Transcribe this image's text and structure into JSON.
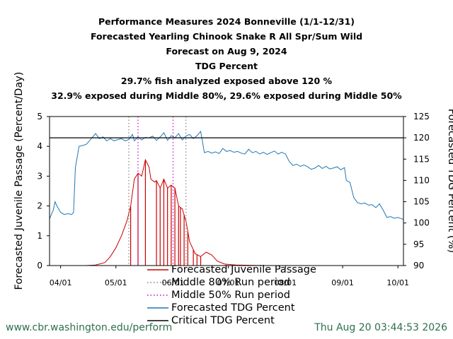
{
  "chart_data": {
    "type": "line",
    "title_lines": [
      "Performance Measures 2024 Bonneville (1/1-12/31)",
      "Forecasted Yearling Chinook Snake R All Spr/Sum Wild",
      "Forecast on Aug 9, 2024",
      "TDG Percent",
      "29.7% fish analyzed exposed above 120 %",
      "32.9% exposed during Middle 80%, 29.6% exposed during Middle 50%"
    ],
    "ylabel_left": "Forecasted Juvenile Passage (Percent/Day)",
    "ylabel_right": "Forecasted TDG Percent (%)",
    "ylim_left": [
      0,
      5
    ],
    "ylim_right": [
      90,
      125
    ],
    "yticks_left": [
      "0",
      "1",
      "2",
      "3",
      "4",
      "5"
    ],
    "yticks_right": [
      "90",
      "95",
      "100",
      "105",
      "110",
      "115",
      "120",
      "125"
    ],
    "xlim_days": [
      "2024-03-26",
      "2024-10-04"
    ],
    "xticks": [
      {
        "label": "04/01",
        "date": "2024-04-01"
      },
      {
        "label": "05/01",
        "date": "2024-05-01"
      },
      {
        "label": "06/01",
        "date": "2024-06-01"
      },
      {
        "label": "07/01",
        "date": "2024-07-01"
      },
      {
        "label": "08/01",
        "date": "2024-08-01"
      },
      {
        "label": "09/01",
        "date": "2024-09-01"
      },
      {
        "label": "10/01",
        "date": "2024-10-01"
      }
    ],
    "critical_tdg": 120,
    "middle80_dates": [
      "2024-05-08",
      "2024-06-08"
    ],
    "middle50_dates": [
      "2024-05-13",
      "2024-06-01"
    ],
    "passage_series": {
      "name": "Forecasted Juvenile Passage",
      "points": [
        [
          "2024-04-15",
          0
        ],
        [
          "2024-04-20",
          0.02
        ],
        [
          "2024-04-25",
          0.1
        ],
        [
          "2024-04-28",
          0.3
        ],
        [
          "2024-05-01",
          0.6
        ],
        [
          "2024-05-04",
          1.0
        ],
        [
          "2024-05-07",
          1.5
        ],
        [
          "2024-05-09",
          2.0
        ],
        [
          "2024-05-11",
          2.9
        ],
        [
          "2024-05-13",
          3.1
        ],
        [
          "2024-05-15",
          3.0
        ],
        [
          "2024-05-17",
          3.55
        ],
        [
          "2024-05-19",
          3.3
        ],
        [
          "2024-05-20",
          2.9
        ],
        [
          "2024-05-22",
          2.8
        ],
        [
          "2024-05-23",
          2.85
        ],
        [
          "2024-05-25",
          2.6
        ],
        [
          "2024-05-27",
          2.9
        ],
        [
          "2024-05-29",
          2.6
        ],
        [
          "2024-05-31",
          2.7
        ],
        [
          "2024-06-02",
          2.6
        ],
        [
          "2024-06-04",
          2.0
        ],
        [
          "2024-06-06",
          1.9
        ],
        [
          "2024-06-08",
          1.5
        ],
        [
          "2024-06-10",
          0.8
        ],
        [
          "2024-06-13",
          0.4
        ],
        [
          "2024-06-16",
          0.3
        ],
        [
          "2024-06-19",
          0.45
        ],
        [
          "2024-06-22",
          0.35
        ],
        [
          "2024-06-25",
          0.15
        ],
        [
          "2024-06-29",
          0.05
        ],
        [
          "2024-07-05",
          0.02
        ],
        [
          "2024-07-20",
          0
        ],
        [
          "2024-08-10",
          0
        ]
      ]
    },
    "exposure_bar_dates": [
      "2024-05-09",
      "2024-05-13",
      "2024-05-17",
      "2024-05-23",
      "2024-05-25",
      "2024-05-27",
      "2024-05-29",
      "2024-05-31",
      "2024-06-02",
      "2024-06-04",
      "2024-06-05",
      "2024-06-07",
      "2024-06-09",
      "2024-06-12",
      "2024-06-14",
      "2024-06-16"
    ],
    "tdg_series": {
      "name": "Forecasted TDG Percent",
      "points": [
        [
          "2024-03-26",
          101
        ],
        [
          "2024-03-28",
          103
        ],
        [
          "2024-03-29",
          105
        ],
        [
          "2024-03-30",
          104
        ],
        [
          "2024-04-01",
          102.5
        ],
        [
          "2024-04-03",
          102
        ],
        [
          "2024-04-05",
          102.2
        ],
        [
          "2024-04-07",
          102
        ],
        [
          "2024-04-08",
          102.5
        ],
        [
          "2024-04-09",
          113
        ],
        [
          "2024-04-11",
          118
        ],
        [
          "2024-04-13",
          118.2
        ],
        [
          "2024-04-15",
          118.5
        ],
        [
          "2024-04-17",
          119.5
        ],
        [
          "2024-04-19",
          120.5
        ],
        [
          "2024-04-20",
          121
        ],
        [
          "2024-04-22",
          119.8
        ],
        [
          "2024-04-24",
          120.2
        ],
        [
          "2024-04-26",
          119.3
        ],
        [
          "2024-04-28",
          119.8
        ],
        [
          "2024-04-30",
          119.3
        ],
        [
          "2024-05-02",
          119.6
        ],
        [
          "2024-05-04",
          119.8
        ],
        [
          "2024-05-06",
          119.3
        ],
        [
          "2024-05-08",
          119.6
        ],
        [
          "2024-05-10",
          120.8
        ],
        [
          "2024-05-11",
          119.3
        ],
        [
          "2024-05-13",
          120.2
        ],
        [
          "2024-05-15",
          119.5
        ],
        [
          "2024-05-17",
          120.1
        ],
        [
          "2024-05-19",
          120.0
        ],
        [
          "2024-05-21",
          120.4
        ],
        [
          "2024-05-23",
          119.4
        ],
        [
          "2024-05-25",
          120.2
        ],
        [
          "2024-05-27",
          121.2
        ],
        [
          "2024-05-29",
          119.4
        ],
        [
          "2024-05-31",
          120.5
        ],
        [
          "2024-06-02",
          120.0
        ],
        [
          "2024-06-04",
          121.0
        ],
        [
          "2024-06-06",
          119.5
        ],
        [
          "2024-06-08",
          120.4
        ],
        [
          "2024-06-10",
          120.8
        ],
        [
          "2024-06-12",
          119.8
        ],
        [
          "2024-06-14",
          120.5
        ],
        [
          "2024-06-16",
          121.5
        ],
        [
          "2024-06-18",
          116.5
        ],
        [
          "2024-06-20",
          116.8
        ],
        [
          "2024-06-22",
          116.4
        ],
        [
          "2024-06-24",
          116.7
        ],
        [
          "2024-06-26",
          116.3
        ],
        [
          "2024-06-28",
          117.5
        ],
        [
          "2024-06-30",
          116.8
        ],
        [
          "2024-07-02",
          117
        ],
        [
          "2024-07-04",
          116.6
        ],
        [
          "2024-07-06",
          116.8
        ],
        [
          "2024-07-08",
          116.4
        ],
        [
          "2024-07-10",
          116.2
        ],
        [
          "2024-07-12",
          117.3
        ],
        [
          "2024-07-14",
          116.5
        ],
        [
          "2024-07-16",
          116.8
        ],
        [
          "2024-07-18",
          116.2
        ],
        [
          "2024-07-20",
          116.6
        ],
        [
          "2024-07-22",
          116.1
        ],
        [
          "2024-07-24",
          116.5
        ],
        [
          "2024-07-26",
          116.9
        ],
        [
          "2024-07-28",
          116.2
        ],
        [
          "2024-07-30",
          116.6
        ],
        [
          "2024-08-01",
          116.2
        ],
        [
          "2024-08-03",
          114.5
        ],
        [
          "2024-08-05",
          113.5
        ],
        [
          "2024-08-07",
          113.8
        ],
        [
          "2024-08-09",
          113.3
        ],
        [
          "2024-08-11",
          113.6
        ],
        [
          "2024-08-13",
          113.2
        ],
        [
          "2024-08-15",
          112.6
        ],
        [
          "2024-08-17",
          112.9
        ],
        [
          "2024-08-19",
          113.5
        ],
        [
          "2024-08-21",
          112.8
        ],
        [
          "2024-08-23",
          113.3
        ],
        [
          "2024-08-25",
          112.7
        ],
        [
          "2024-08-27",
          112.9
        ],
        [
          "2024-08-29",
          113.2
        ],
        [
          "2024-08-31",
          112.5
        ],
        [
          "2024-09-02",
          113
        ],
        [
          "2024-09-03",
          110
        ],
        [
          "2024-09-05",
          109.5
        ],
        [
          "2024-09-07",
          106
        ],
        [
          "2024-09-09",
          104.8
        ],
        [
          "2024-09-11",
          104.5
        ],
        [
          "2024-09-13",
          104.7
        ],
        [
          "2024-09-15",
          104.2
        ],
        [
          "2024-09-17",
          104.3
        ],
        [
          "2024-09-19",
          103.6
        ],
        [
          "2024-09-21",
          104.5
        ],
        [
          "2024-09-23",
          103
        ],
        [
          "2024-09-25",
          101.3
        ],
        [
          "2024-09-27",
          101.5
        ],
        [
          "2024-09-29",
          101.1
        ],
        [
          "2024-10-01",
          101.3
        ],
        [
          "2024-10-03",
          101.0
        ],
        [
          "2024-10-04",
          100.8
        ]
      ]
    },
    "legend_placement": "bottom",
    "colors": {
      "passage": "#cc0000",
      "tdg": "#1f77b4",
      "middle80": "#808080",
      "middle50": "#cc00cc",
      "critical": "#000000"
    }
  },
  "legend": [
    {
      "label": "Forecasted Juvenile Passage",
      "kind": "line",
      "color": "#cc0000"
    },
    {
      "label": "Middle 80% Run period",
      "kind": "dot",
      "color": "#808080"
    },
    {
      "label": "Middle 50% Run period",
      "kind": "dot",
      "color": "#cc00cc"
    },
    {
      "label": "Forecasted TDG Percent",
      "kind": "line",
      "color": "#1f77b4"
    },
    {
      "label": "Critical TDG Percent",
      "kind": "line",
      "color": "#000000"
    }
  ],
  "footer": {
    "url": "www.cbr.washington.edu/perform",
    "timestamp": "Thu Aug 20 03:44:53 2026"
  }
}
